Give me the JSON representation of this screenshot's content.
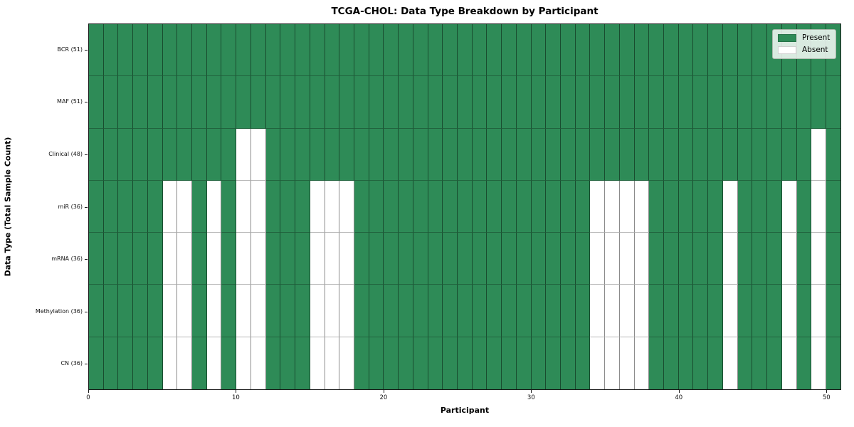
{
  "figure": {
    "title": "TCGA-CHOL: Data Type Breakdown by Participant"
  },
  "axes": {
    "xlabel": "Participant",
    "ylabel": "Data Type (Total Sample Count)"
  },
  "legend": {
    "present_label": "Present",
    "absent_label": "Absent"
  },
  "chart_data": {
    "type": "heatmap",
    "title": "TCGA-CHOL: Data Type Breakdown by Participant",
    "xlabel": "Participant",
    "ylabel": "Data Type (Total Sample Count)",
    "x_range": [
      0,
      51
    ],
    "x_ticks": [
      0,
      10,
      20,
      30,
      40,
      50
    ],
    "n_participants": 51,
    "grid": true,
    "legend_position": "upper right",
    "legend_entries": [
      {
        "label": "Present",
        "color": "#2e8b57"
      },
      {
        "label": "Absent",
        "color": "#ffffff"
      }
    ],
    "colors": {
      "present": "#2e8b57",
      "absent": "#ffffff"
    },
    "rows": [
      {
        "label": "BCR (51)",
        "data_type": "BCR",
        "total_samples": 51,
        "absent_participants": []
      },
      {
        "label": "MAF (51)",
        "data_type": "MAF",
        "total_samples": 51,
        "absent_participants": []
      },
      {
        "label": "Clinical (48)",
        "data_type": "Clinical",
        "total_samples": 48,
        "absent_participants": [
          10,
          11,
          49
        ]
      },
      {
        "label": "miR (36)",
        "data_type": "miR",
        "total_samples": 36,
        "absent_participants": [
          5,
          6,
          8,
          10,
          11,
          15,
          16,
          17,
          34,
          35,
          36,
          37,
          43,
          47,
          49
        ]
      },
      {
        "label": "mRNA (36)",
        "data_type": "mRNA",
        "total_samples": 36,
        "absent_participants": [
          5,
          6,
          8,
          10,
          11,
          15,
          16,
          17,
          34,
          35,
          36,
          37,
          43,
          47,
          49
        ]
      },
      {
        "label": "Methylation (36)",
        "data_type": "Methylation",
        "total_samples": 36,
        "absent_participants": [
          5,
          6,
          8,
          10,
          11,
          15,
          16,
          17,
          34,
          35,
          36,
          37,
          43,
          47,
          49
        ]
      },
      {
        "label": "CN (36)",
        "data_type": "CN",
        "total_samples": 36,
        "absent_participants": [
          5,
          6,
          8,
          10,
          11,
          15,
          16,
          17,
          34,
          35,
          36,
          37,
          43,
          47,
          49
        ]
      }
    ]
  }
}
